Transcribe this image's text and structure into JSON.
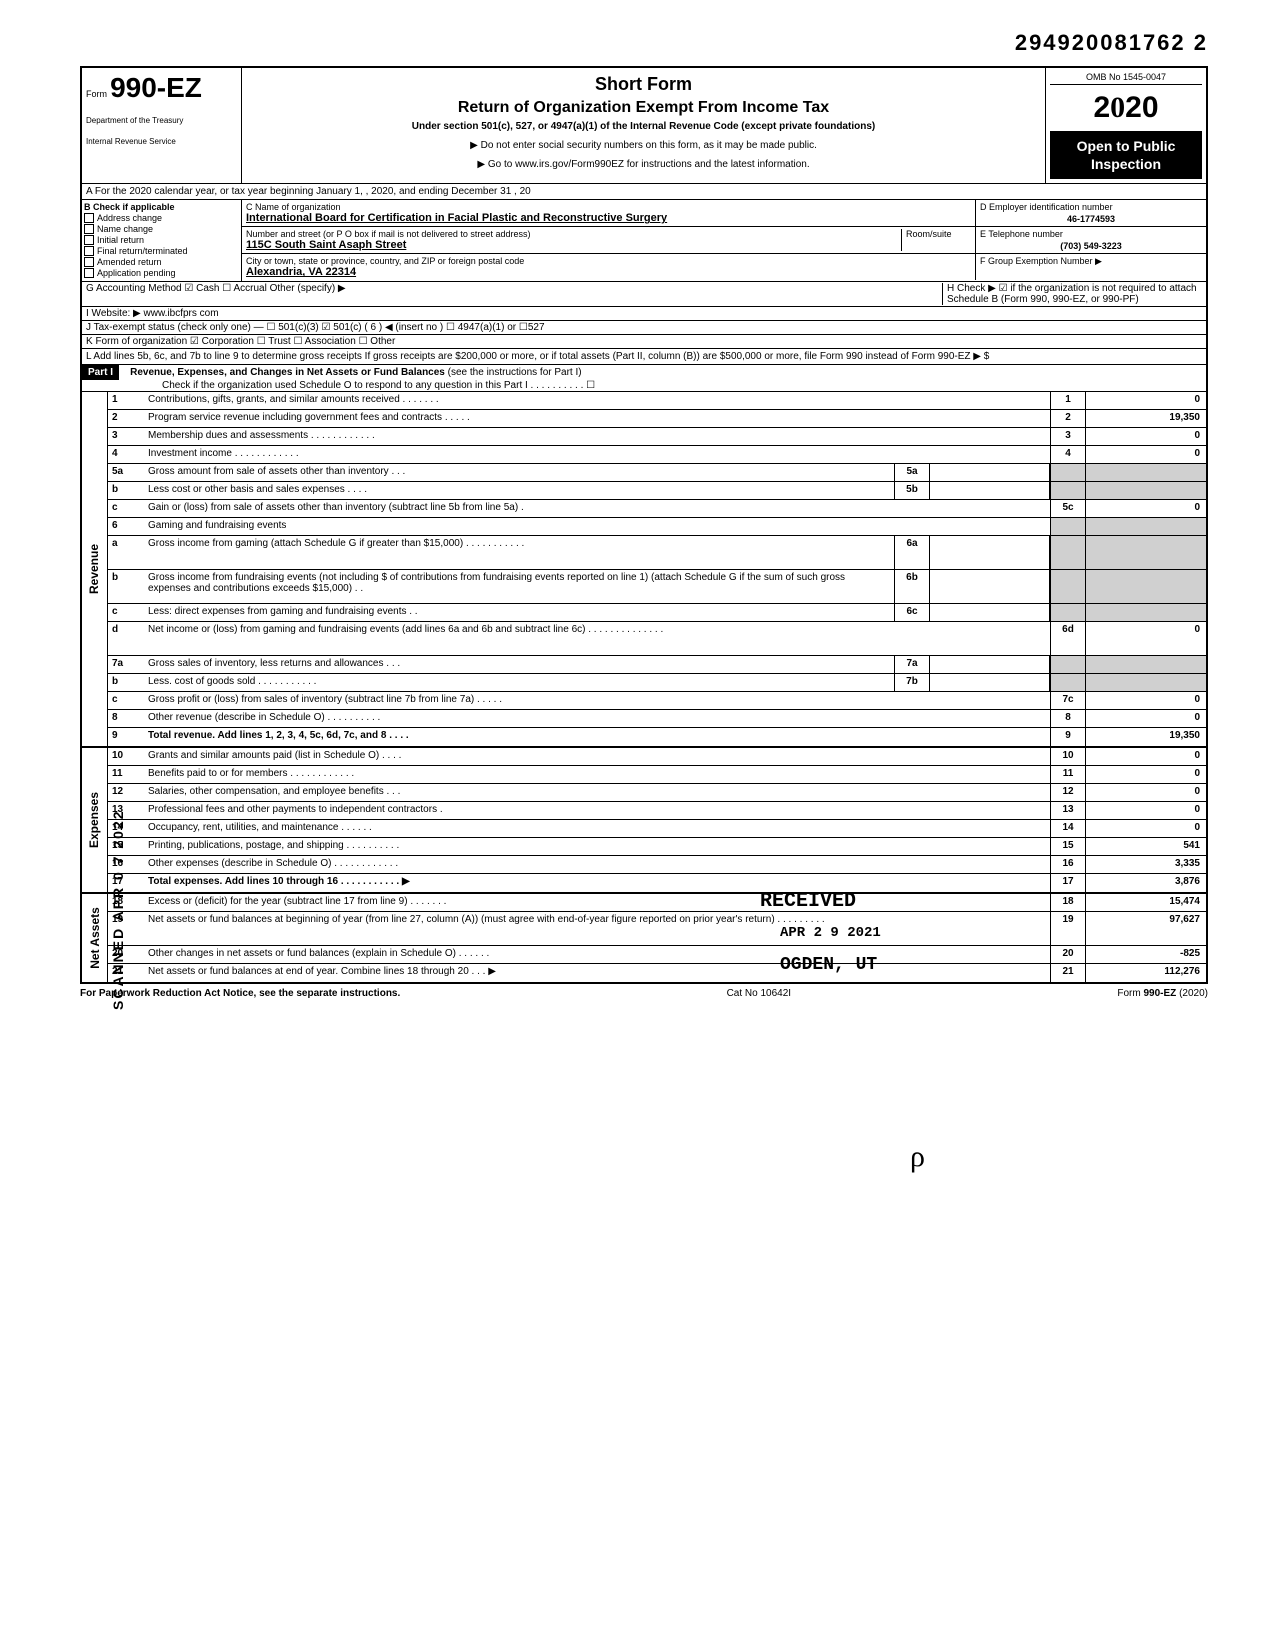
{
  "doc_number": "294920081762 2",
  "form": {
    "label": "Form",
    "number": "990-EZ",
    "dept1": "Department of the Treasury",
    "dept2": "Internal Revenue Service"
  },
  "title": {
    "main": "Short Form",
    "sub": "Return of Organization Exempt From Income Tax",
    "under": "Under section 501(c), 527, or 4947(a)(1) of the Internal Revenue Code (except private foundations)",
    "note1": "▶ Do not enter social security numbers on this form, as it may be made public.",
    "note2": "▶ Go to www.irs.gov/Form990EZ for instructions and the latest information."
  },
  "year_box": {
    "omb": "OMB No 1545-0047",
    "year": "2020",
    "open": "Open to Public Inspection"
  },
  "row_a": "A For the 2020 calendar year, or tax year beginning                    January 1,               , 2020, and ending            December 31         , 20",
  "section_b": {
    "header": "B Check if applicable",
    "items": [
      "Address change",
      "Name change",
      "Initial return",
      "Final return/terminated",
      "Amended return",
      "Application pending"
    ]
  },
  "section_c": {
    "name_label": "C Name of organization",
    "name": "International Board for Certification in Facial Plastic and Reconstructive Surgery",
    "street_label": "Number and street (or P O box if mail is not delivered to street address)",
    "room_label": "Room/suite",
    "street": "115C South Saint Asaph Street",
    "city_label": "City or town, state or province, country, and ZIP or foreign postal code",
    "city": "Alexandria, VA  22314"
  },
  "section_d": {
    "label": "D Employer identification number",
    "value": "46-1774593"
  },
  "section_e": {
    "label": "E Telephone number",
    "value": "(703) 549-3223"
  },
  "section_f": {
    "label": "F Group Exemption Number ▶",
    "value": ""
  },
  "row_g": "G Accounting Method    ☑ Cash    ☐ Accrual    Other (specify) ▶",
  "row_h": "H Check ▶ ☑ if the organization is not required to attach Schedule B (Form 990, 990-EZ, or 990-PF)",
  "row_i": "I Website: ▶    www.ibcfprs com",
  "row_j": "J Tax-exempt status (check only one) — ☐ 501(c)(3)   ☑ 501(c) (  6  ) ◀ (insert no )  ☐ 4947(a)(1) or   ☐527",
  "row_k": "K Form of organization     ☑ Corporation     ☐ Trust     ☐ Association     ☐ Other",
  "row_l": "L Add lines 5b, 6c, and 7b to line 9 to determine gross receipts  If gross receipts are $200,000 or more, or if total assets (Part II, column (B)) are $500,000 or more, file Form 990 instead of Form 990-EZ                                                                          ▶ $",
  "part1": {
    "label": "Part I",
    "title": "Revenue, Expenses, and Changes in Net Assets or Fund Balances",
    "note": " (see the instructions for Part I)",
    "check": "Check if the organization used Schedule O to respond to any question in this Part I . . . . . . . . . .  ☐"
  },
  "sections": [
    {
      "label": "Revenue",
      "rows": [
        {
          "n": "1",
          "d": "Contributions, gifts, grants, and similar amounts received    .    .    .    .    .    .    .",
          "rn": "1",
          "rv": "0"
        },
        {
          "n": "2",
          "d": "Program service revenue including government fees and contracts        .        .    .    .    .",
          "rn": "2",
          "rv": "19,350"
        },
        {
          "n": "3",
          "d": "Membership dues and assessments .   .   .   .        .    .    .    .    .    .    .    .",
          "rn": "3",
          "rv": "0"
        },
        {
          "n": "4",
          "d": "Investment income      .      .      .      .            .      .      .      .      .      .      .      .",
          "rn": "4",
          "rv": "0"
        },
        {
          "n": "5a",
          "d": "Gross amount from sale of assets other than inventory      .    .    .",
          "mn": "5a",
          "gray": true
        },
        {
          "n": "b",
          "d": "Less  cost or other basis and sales expenses .    .    .    .",
          "mn": "5b",
          "gray": true
        },
        {
          "n": "c",
          "d": "Gain or (loss) from sale of assets other than inventory (subtract line 5b from line 5a)        .",
          "rn": "5c",
          "rv": "0"
        },
        {
          "n": "6",
          "d": "Gaming and fundraising events",
          "gray": true
        },
        {
          "n": "a",
          "d": "Gross income from gaming (attach Schedule G if greater than $15,000) .   .   .         .        .        .        .        .        .    .    .",
          "mn": "6a",
          "gray": true,
          "tall": true
        },
        {
          "n": "b",
          "d": "Gross income from fundraising events (not including  $                         of contributions from fundraising events reported on line 1) (attach Schedule G if the sum of such gross expenses and contributions exceeds $15,000) .   .",
          "mn": "6b",
          "gray": true,
          "tall": true
        },
        {
          "n": "c",
          "d": "Less: direct expenses from gaming and fundraising events    .    .",
          "mn": "6c",
          "gray": true
        },
        {
          "n": "d",
          "d": "Net income or (loss) from gaming and fundraising events (add lines 6a and 6b and subtract line 6c)         .    .    .    .            .        .        .        .        .        .        .        .    .    .",
          "rn": "6d",
          "rv": "0",
          "tall": true
        },
        {
          "n": "7a",
          "d": "Gross sales of inventory, less returns and allowances        .    .    .",
          "mn": "7a",
          "gray": true
        },
        {
          "n": "b",
          "d": "Less. cost of goods sold            .            .    .    .    .    .    .    .    .    .    .",
          "mn": "7b",
          "gray": true
        },
        {
          "n": "c",
          "d": "Gross profit or (loss) from sales of inventory (subtract line 7b from line 7a)  .    .    .    .    .",
          "rn": "7c",
          "rv": "0"
        },
        {
          "n": "8",
          "d": "Other revenue (describe in Schedule O)      .    .    .    .        .    .          .        .    .    .",
          "rn": "8",
          "rv": "0"
        },
        {
          "n": "9",
          "d": "Total revenue. Add lines 1, 2, 3, 4, 5c, 6d, 7c, and 8    .    .    .    .",
          "rn": "9",
          "rv": "19,350",
          "bold": true
        }
      ]
    },
    {
      "label": "Expenses",
      "rows": [
        {
          "n": "10",
          "d": "Grants and similar amounts paid (list in Schedule O)    .        .    .    .",
          "rn": "10",
          "rv": "0"
        },
        {
          "n": "11",
          "d": "Benefits paid to or for members    .    .    .    .    .    .        .    .            .        .    .    .",
          "rn": "11",
          "rv": "0"
        },
        {
          "n": "12",
          "d": "Salaries, other compensation, and employee benefits      .    .    .",
          "rn": "12",
          "rv": "0"
        },
        {
          "n": "13",
          "d": "Professional fees and other payments to independent contractors .",
          "rn": "13",
          "rv": "0"
        },
        {
          "n": "14",
          "d": "Occupancy, rent, utilities, and maintenance        .    .    .        .    .    .",
          "rn": "14",
          "rv": "0"
        },
        {
          "n": "15",
          "d": "Printing, publications, postage, and shipping      .    .    .        .    .    .          .    .    .    .",
          "rn": "15",
          "rv": "541"
        },
        {
          "n": "16",
          "d": "Other expenses (describe in Schedule O)  .    .        .    .    .    .        .    .    .    .    .    .",
          "rn": "16",
          "rv": "3,335"
        },
        {
          "n": "17",
          "d": "Total expenses. Add lines 10 through 16          .    .    .    .    .    .    .    .    .    .    .  ▶",
          "rn": "17",
          "rv": "3,876",
          "bold": true
        }
      ]
    },
    {
      "label": "Net Assets",
      "rows": [
        {
          "n": "18",
          "d": "Excess or (deficit) for the year (subtract line 17 from line 9)          .    .    .    .    .    .    .",
          "rn": "18",
          "rv": "15,474"
        },
        {
          "n": "19",
          "d": "Net assets or fund balances at beginning of year (from line 27, column (A)) (must agree with end-of-year figure reported on prior year's return)          .     .    .    .    .    .    .    .    .",
          "rn": "19",
          "rv": "97,627",
          "tall": true
        },
        {
          "n": "20",
          "d": "Other changes in net assets or fund balances (explain in Schedule O) .        .    .    .    .    .",
          "rn": "20",
          "rv": "-825"
        },
        {
          "n": "21",
          "d": "Net assets or fund balances at end of year. Combine lines 18 through 20      .    .    .     ▶",
          "rn": "21",
          "rv": "112,276"
        }
      ]
    }
  ],
  "footer": {
    "left": "For Paperwork Reduction Act Notice, see the separate instructions.",
    "mid": "Cat No 10642I",
    "right": "Form 990-EZ (2020)"
  },
  "stamps": {
    "received": "RECEIVED",
    "date": "APR 2 9 2021",
    "ogden": "OGDEN, UT",
    "scanned": "SCANNED APR 0 7 2022",
    "d252": "D252"
  }
}
